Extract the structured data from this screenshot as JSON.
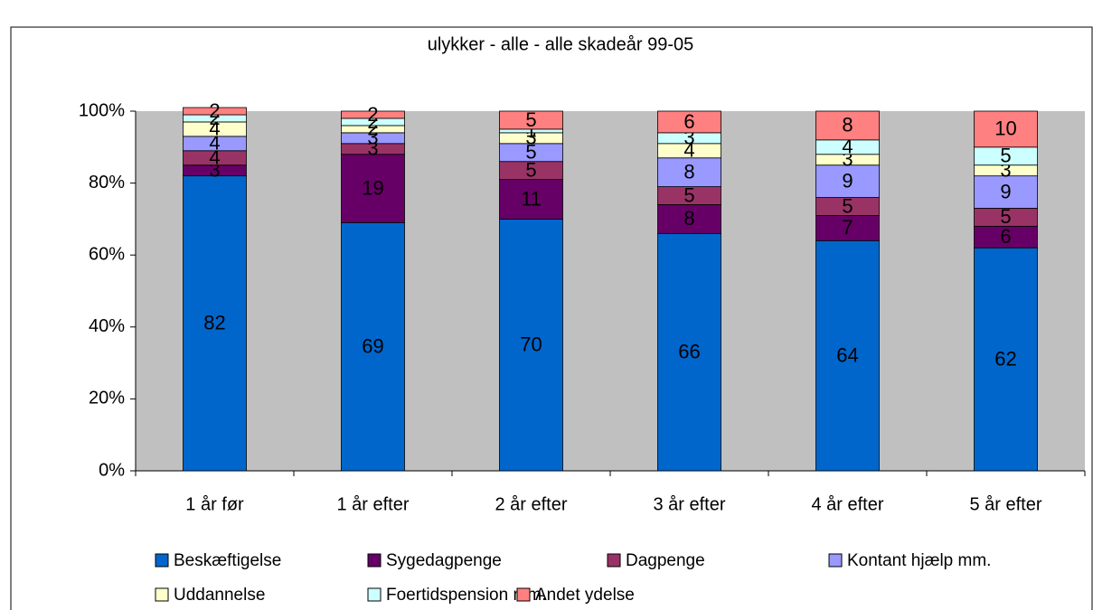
{
  "chart_data": {
    "type": "stacked_bar",
    "title": "ulykker - alle - alle skadeår 99-05",
    "categories": [
      "1 år før",
      "1 år efter",
      "2 år efter",
      "3 år efter",
      "4 år efter",
      "5 år efter"
    ],
    "series": [
      {
        "name": "Beskæftigelse",
        "color": "#0066cc",
        "values": [
          82,
          69,
          70,
          66,
          64,
          62
        ]
      },
      {
        "name": "Sygedagpenge",
        "color": "#660066",
        "values": [
          3,
          19,
          11,
          8,
          7,
          6
        ]
      },
      {
        "name": "Dagpenge",
        "color": "#993366",
        "values": [
          4,
          3,
          5,
          5,
          5,
          5
        ]
      },
      {
        "name": "Kontant hjælp mm.",
        "color": "#9999ff",
        "values": [
          4,
          3,
          5,
          8,
          9,
          9
        ]
      },
      {
        "name": "Uddannelse",
        "color": "#ffffcc",
        "values": [
          4,
          2,
          3,
          4,
          3,
          3
        ]
      },
      {
        "name": "Foertidspension mm.",
        "color": "#ccffff",
        "values": [
          2,
          2,
          1,
          3,
          4,
          5
        ]
      },
      {
        "name": "Andet ydelse",
        "color": "#ff8080",
        "values": [
          2,
          2,
          5,
          6,
          8,
          10
        ]
      }
    ],
    "ylim": [
      0,
      100
    ],
    "yticks": [
      {
        "value": 0,
        "label": "0%"
      },
      {
        "value": 20,
        "label": "20%"
      },
      {
        "value": 40,
        "label": "40%"
      },
      {
        "value": 60,
        "label": "60%"
      },
      {
        "value": 80,
        "label": "80%"
      },
      {
        "value": 100,
        "label": "100%"
      }
    ],
    "plot_background": "#c0c0c0",
    "legend": "bottom"
  }
}
